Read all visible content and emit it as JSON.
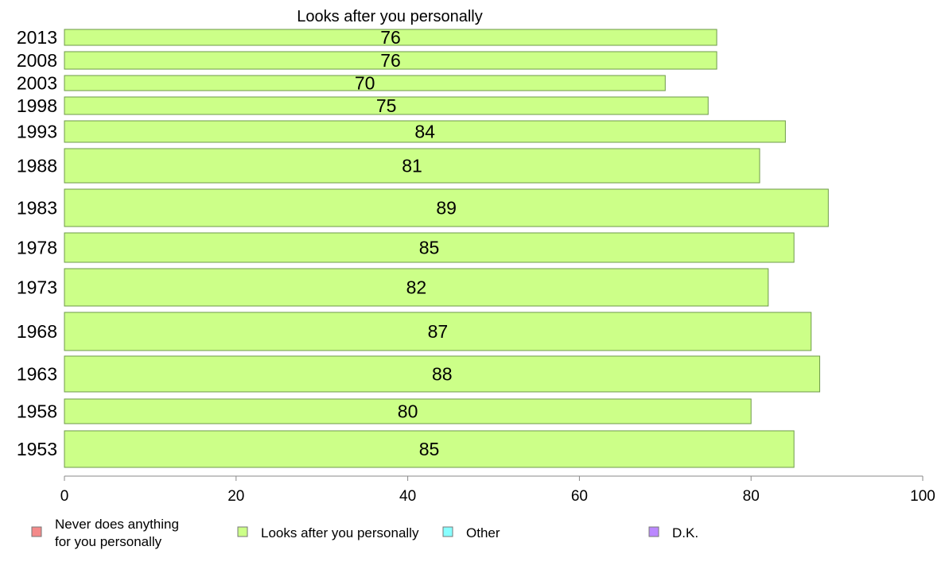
{
  "chart_data": {
    "type": "bar",
    "orientation": "horizontal",
    "title": "Looks after you personally",
    "categories": [
      "2013",
      "2008",
      "2003",
      "1998",
      "1993",
      "1988",
      "1983",
      "1978",
      "1973",
      "1968",
      "1963",
      "1958",
      "1953"
    ],
    "values": [
      76,
      76,
      70,
      75,
      84,
      81,
      89,
      85,
      82,
      87,
      88,
      80,
      85
    ],
    "xlim": [
      0,
      100
    ],
    "xticks": [
      "0",
      "20",
      "40",
      "60",
      "80",
      "100"
    ],
    "xlabel": "",
    "ylabel": "",
    "legend_position": "bottom",
    "legend": [
      {
        "label_lines": [
          "Never does anything",
          "for you personally"
        ],
        "color": "#f48a8a"
      },
      {
        "label_lines": [
          "Looks after you personally"
        ],
        "color": "#ccff88"
      },
      {
        "label_lines": [
          "Other"
        ],
        "color": "#88ffff"
      },
      {
        "label_lines": [
          "D.K."
        ],
        "color": "#bb88ff"
      }
    ],
    "bar_color": "#ccff88",
    "bar_edge_color": "#6e9a4a",
    "grid": false
  }
}
